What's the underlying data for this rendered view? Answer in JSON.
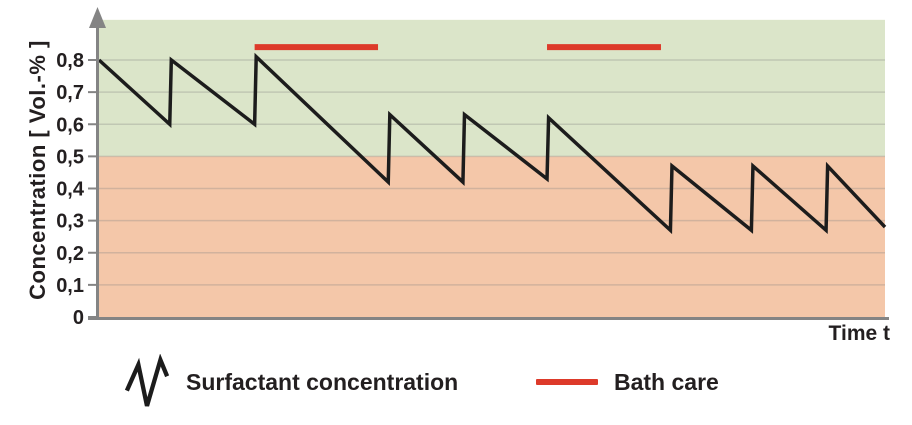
{
  "chart_data": {
    "type": "line",
    "title": "",
    "ylabel": "Concentration [ Vol.-% ]",
    "xlabel": "Time t",
    "xlim": [
      0,
      100
    ],
    "ylim": [
      0,
      0.925
    ],
    "grid": true,
    "yticks": {
      "values": [
        0,
        0.1,
        0.2,
        0.3,
        0.4,
        0.5,
        0.6,
        0.7,
        0.8
      ],
      "labels": [
        "0",
        "0,1",
        "0,2",
        "0,3",
        "0,4",
        "0,5",
        "0,6",
        "0,7",
        "0,8"
      ]
    },
    "zones": [
      {
        "name": "concentration-ok-zone",
        "from": 0.5,
        "to": 0.925,
        "color": "#dbe5c9"
      },
      {
        "name": "concentration-low-zone",
        "from": 0,
        "to": 0.5,
        "color": "#f4c7a9"
      }
    ],
    "series": [
      {
        "name": "Surfactant concentration",
        "color": "#1c1c1c",
        "points": [
          [
            0,
            0.8
          ],
          [
            9.0,
            0.6
          ],
          [
            9.2,
            0.8
          ],
          [
            19.8,
            0.6
          ],
          [
            20.0,
            0.81
          ],
          [
            36.8,
            0.42
          ],
          [
            37.0,
            0.63
          ],
          [
            46.3,
            0.42
          ],
          [
            46.5,
            0.63
          ],
          [
            57.0,
            0.43
          ],
          [
            57.2,
            0.62
          ],
          [
            72.7,
            0.27
          ],
          [
            72.9,
            0.47
          ],
          [
            83.0,
            0.27
          ],
          [
            83.2,
            0.47
          ],
          [
            92.5,
            0.27
          ],
          [
            92.7,
            0.47
          ],
          [
            100,
            0.28
          ]
        ]
      }
    ],
    "bath_care": {
      "name": "Bath care",
      "color": "#dd3a2a",
      "level": 0.84,
      "intervals": [
        [
          19.8,
          35.5
        ],
        [
          57.0,
          71.5
        ]
      ]
    }
  },
  "legend": {
    "surfactant_label": "Surfactant concentration",
    "bath_care_label": "Bath care"
  },
  "colors": {
    "line": "#1c1c1c",
    "bath_care": "#dd3a2a",
    "zone_ok": "#dbe5c9",
    "zone_low": "#f4c7a9",
    "axis": "#848484",
    "gridline": "#808080",
    "text": "#231f20"
  }
}
